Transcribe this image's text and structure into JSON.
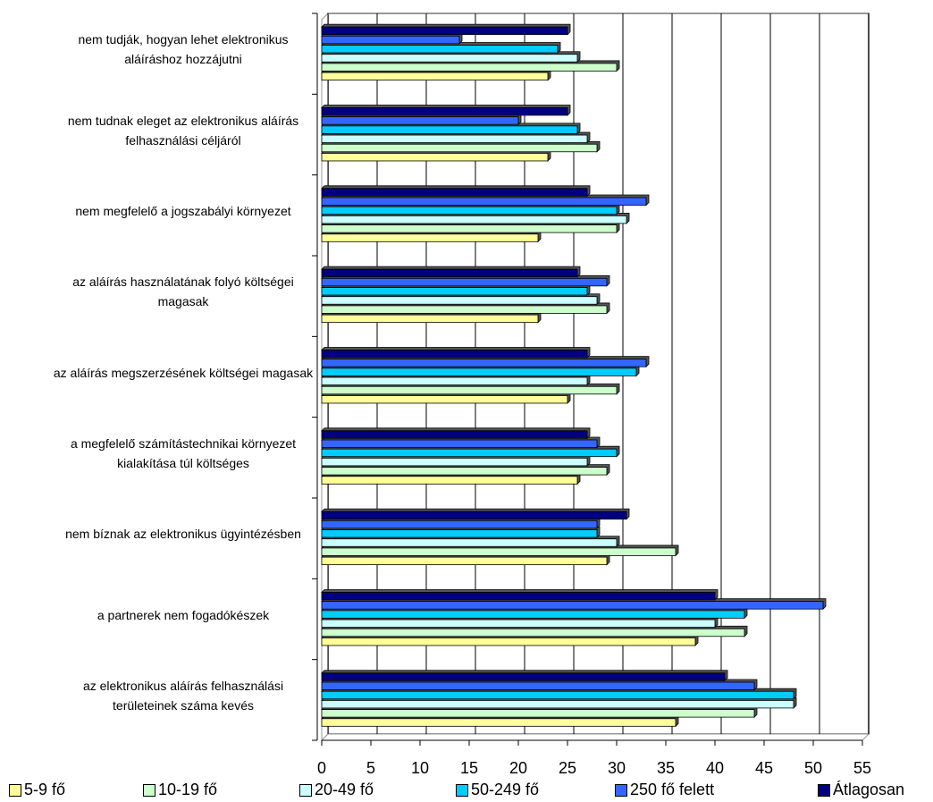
{
  "chart_data": {
    "type": "bar",
    "orientation": "horizontal",
    "categories": [
      "nem tudják, hogyan lehet elektronikus aláíráshoz hozzájutni",
      "nem tudnak eleget az elektronikus aláírás felhasználási céljáról",
      "nem megfelelő a jogszabályi környezet",
      "az aláírás használatának folyó költségei magasak",
      "az aláírás megszerzésének költségei magasak",
      "a megfelelő számítástechnikai környezet kialakítása túl költséges",
      "nem bíznak az elektronikus ügyintézésben",
      "a partnerek nem fogadókészek",
      "az elektronikus aláírás felhasználási területeinek száma kevés"
    ],
    "series": [
      {
        "name": "5-9 fő",
        "color": "#ffff99",
        "values": [
          23,
          23,
          22,
          22,
          25,
          26,
          29,
          38,
          36
        ]
      },
      {
        "name": "10-19 fő",
        "color": "#ccffcc",
        "values": [
          30,
          28,
          30,
          29,
          30,
          29,
          36,
          43,
          44
        ]
      },
      {
        "name": "20-49 fő",
        "color": "#ccffff",
        "values": [
          26,
          27,
          31,
          28,
          27,
          27,
          30,
          40,
          48
        ]
      },
      {
        "name": "50-249 fő",
        "color": "#00ccff",
        "values": [
          24,
          26,
          30,
          27,
          32,
          30,
          28,
          43,
          48
        ]
      },
      {
        "name": "250 fő felett",
        "color": "#3366ff",
        "values": [
          14,
          20,
          33,
          29,
          33,
          28,
          28,
          51,
          44
        ]
      },
      {
        "name": "Átlagosan",
        "color": "#000080",
        "values": [
          25,
          25,
          27,
          26,
          27,
          27,
          31,
          40,
          41
        ]
      }
    ],
    "xlim": [
      0,
      55
    ],
    "xticks": [
      0,
      5,
      10,
      15,
      20,
      25,
      30,
      35,
      40,
      45,
      50,
      55
    ],
    "grid": true,
    "legend": "bottom"
  }
}
